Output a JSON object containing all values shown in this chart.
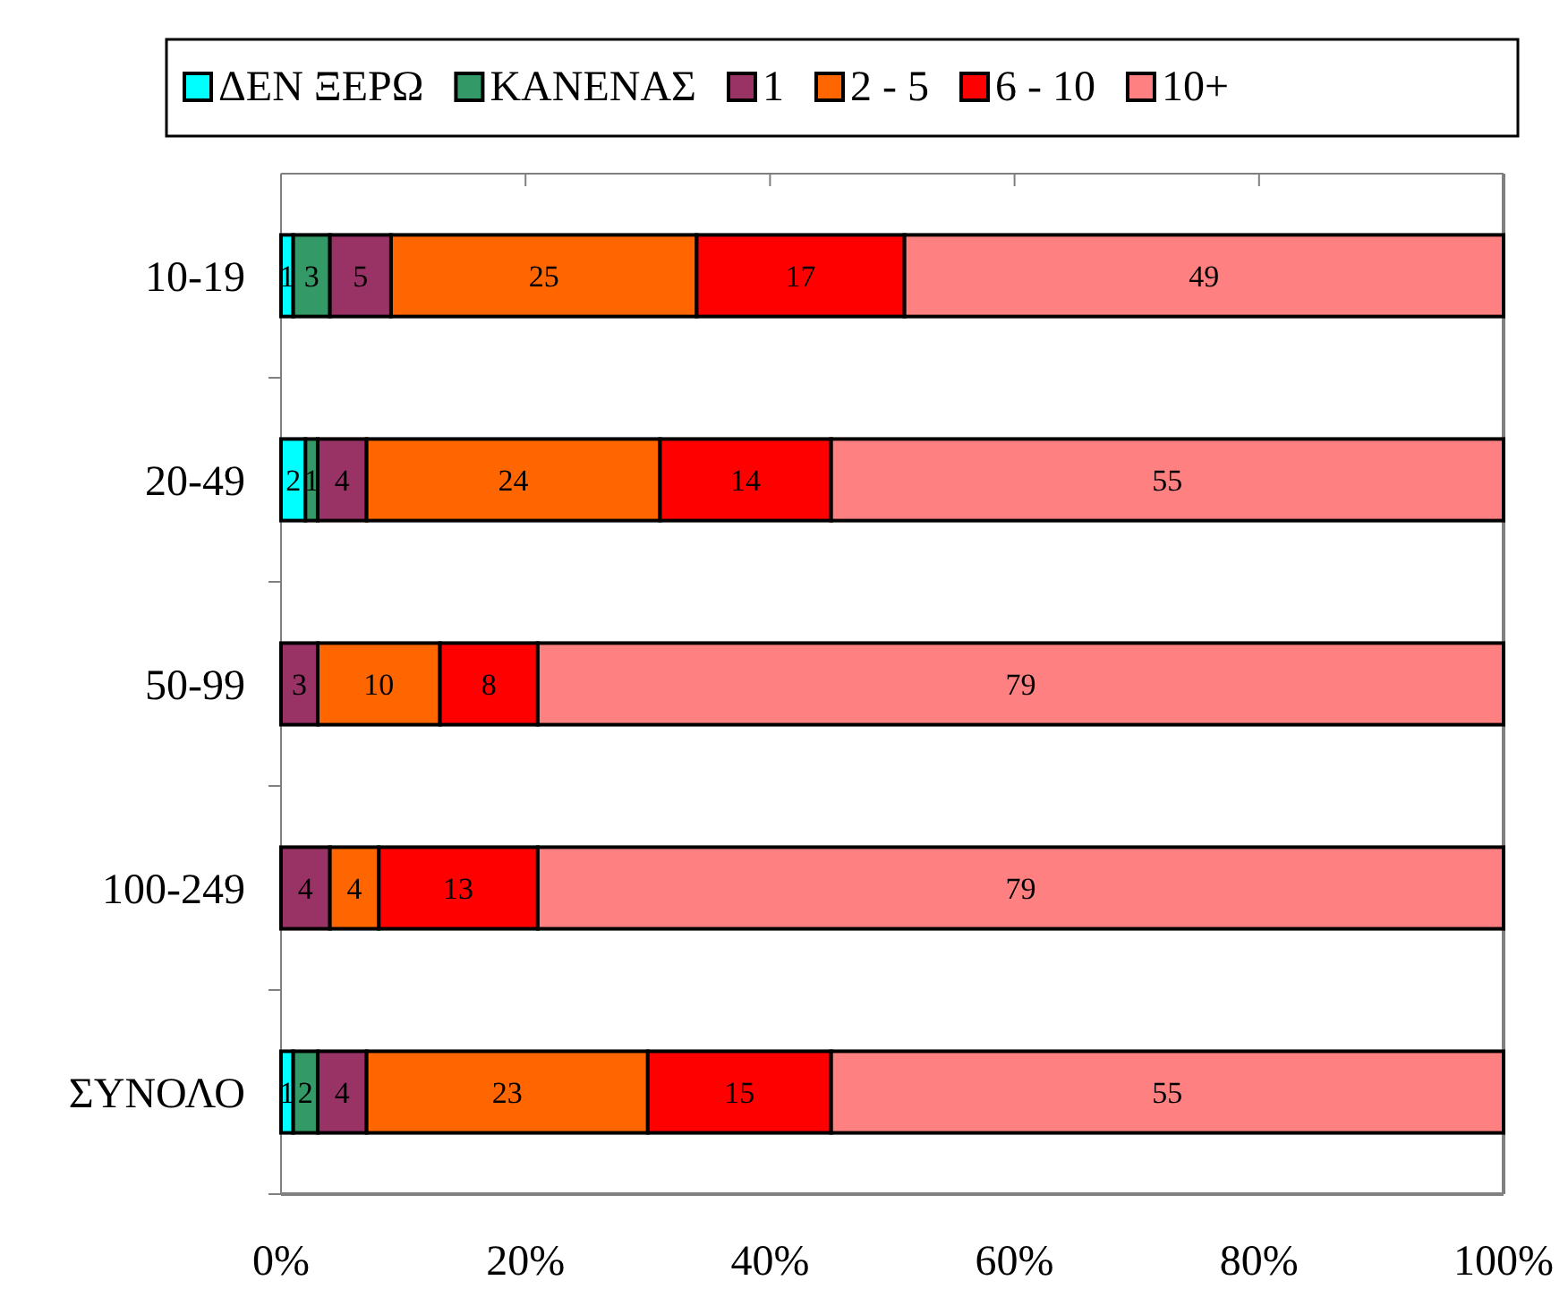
{
  "chart_data": {
    "type": "bar",
    "orientation": "horizontal",
    "stacked": true,
    "categories": [
      "10-19",
      "20-49",
      "50-99",
      "100-249",
      "ΣΥΝΟΛΟ"
    ],
    "series": [
      {
        "name": "ΔΕΝ ΞΕΡΩ",
        "color": "#00ffff",
        "values": [
          1,
          2,
          0,
          0,
          1
        ],
        "value_labels": [
          "1",
          "2",
          null,
          null,
          "1"
        ]
      },
      {
        "name": "ΚΑΝΕΝΑΣ",
        "color": "#339966",
        "values": [
          3,
          1,
          0,
          0,
          2
        ],
        "value_labels": [
          "3",
          "1",
          null,
          null,
          "2"
        ]
      },
      {
        "name": "1",
        "color": "#993366",
        "values": [
          5,
          4,
          3,
          4,
          4
        ],
        "value_labels": [
          "5",
          "4",
          "3",
          "4",
          "4"
        ]
      },
      {
        "name": "2 - 5",
        "color": "#ff6600",
        "values": [
          25,
          24,
          10,
          4,
          23
        ],
        "value_labels": [
          "25",
          "24",
          "10",
          "4",
          "23"
        ]
      },
      {
        "name": "6 - 10",
        "color": "#ff0000",
        "values": [
          17,
          14,
          8,
          13,
          15
        ],
        "value_labels": [
          "17",
          "14",
          "8",
          "13",
          "15"
        ]
      },
      {
        "name": "10+",
        "color": "#ff8080",
        "values": [
          49,
          55,
          79,
          79,
          55
        ],
        "value_labels": [
          "49",
          "55",
          "79",
          "79",
          "55"
        ]
      }
    ],
    "xlim": [
      0,
      100
    ],
    "xticks": [
      {
        "value": 0,
        "label": "0%"
      },
      {
        "value": 20,
        "label": "20%"
      },
      {
        "value": 40,
        "label": "40%"
      },
      {
        "value": 60,
        "label": "60%"
      },
      {
        "value": 80,
        "label": "80%"
      },
      {
        "value": 100,
        "label": "100%"
      }
    ],
    "legend": "top",
    "grid": false
  }
}
